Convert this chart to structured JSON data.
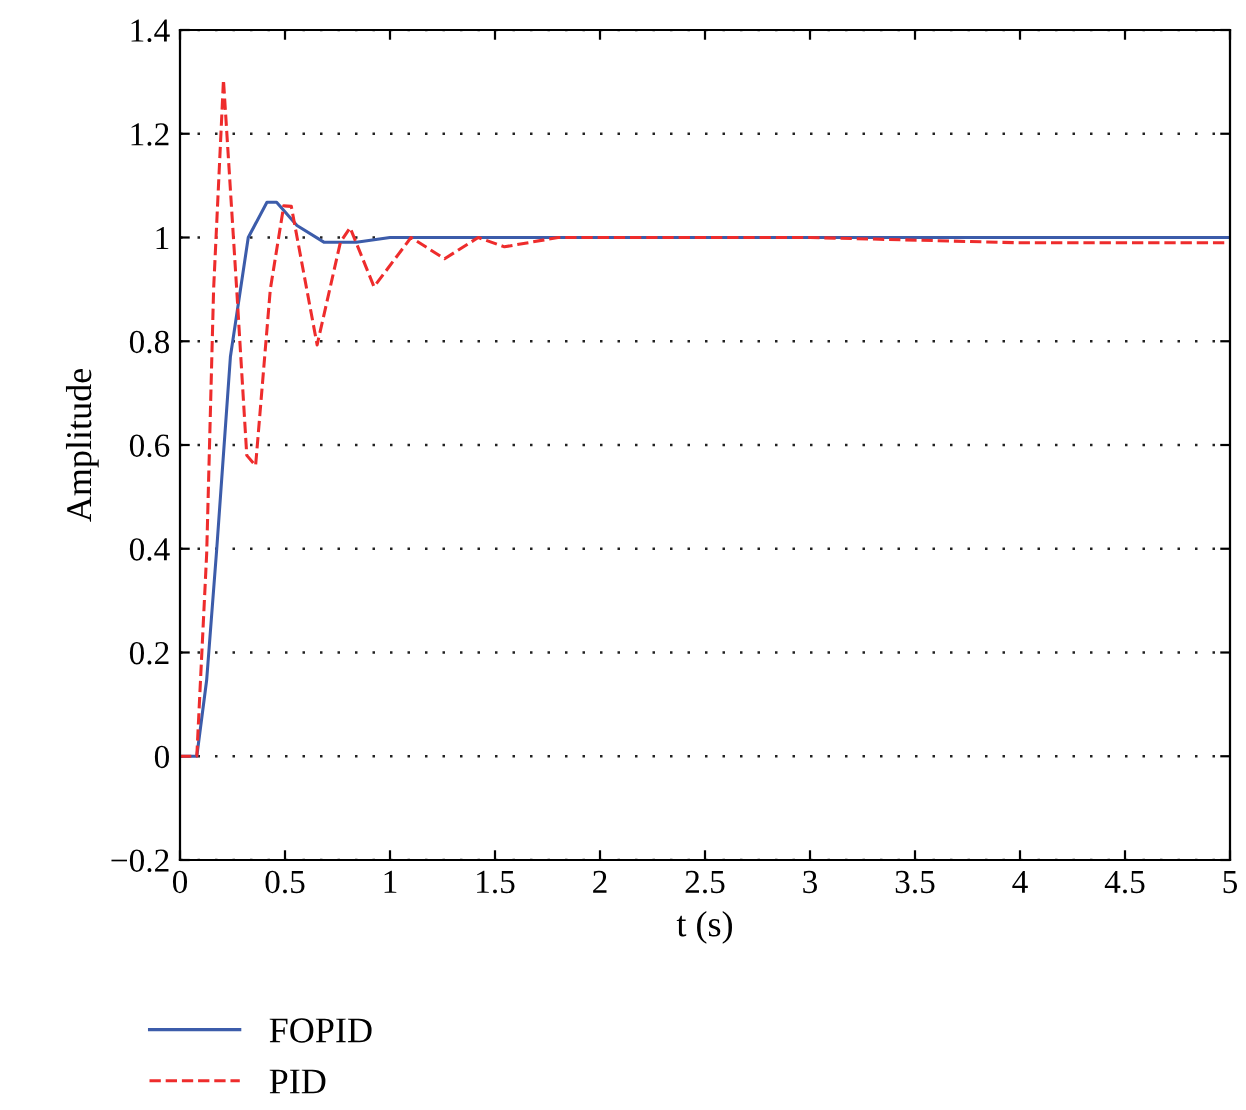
{
  "chart_data": {
    "type": "line",
    "xlabel": "t (s)",
    "ylabel": "Amplitude",
    "xlim": [
      0,
      5
    ],
    "ylim": [
      -0.2,
      1.4
    ],
    "xticks": [
      0,
      0.5,
      1,
      1.5,
      2,
      2.5,
      3,
      3.5,
      4,
      4.5,
      5
    ],
    "yticks": [
      {
        "value": -0.2,
        "label": "−0.2"
      },
      0,
      0.2,
      0.4,
      0.6,
      0.8,
      1,
      1.2,
      1.4
    ],
    "grid": "y",
    "legend": "bottom left",
    "series": [
      {
        "name": "FOPID",
        "color": "#3c5caa",
        "line_style": "solid",
        "x": [
          0,
          0.08,
          0.127,
          0.175,
          0.24,
          0.325,
          0.414,
          0.46,
          0.557,
          0.685,
          0.84,
          1.0,
          5
        ],
        "values": [
          0,
          0,
          0.147,
          0.4,
          0.77,
          1.0,
          1.068,
          1.068,
          1.023,
          0.991,
          0.991,
          1.0,
          1.0
        ]
      },
      {
        "name": "PID",
        "color": "#ee2c2c",
        "line_style": "dashed",
        "x": [
          0,
          0.08,
          0.127,
          0.16,
          0.207,
          0.27,
          0.318,
          0.36,
          0.43,
          0.494,
          0.53,
          0.653,
          0.764,
          0.81,
          0.924,
          1.1,
          1.26,
          1.42,
          1.545,
          1.8,
          3.0,
          3.98,
          5
        ],
        "values": [
          0,
          0,
          0.39,
          0.9,
          1.304,
          0.9,
          0.58,
          0.56,
          0.9,
          1.061,
          1.06,
          0.793,
          0.991,
          1.019,
          0.905,
          1.0,
          0.959,
          1.0,
          0.982,
          1.0,
          1.0,
          0.99,
          0.99
        ]
      }
    ]
  }
}
